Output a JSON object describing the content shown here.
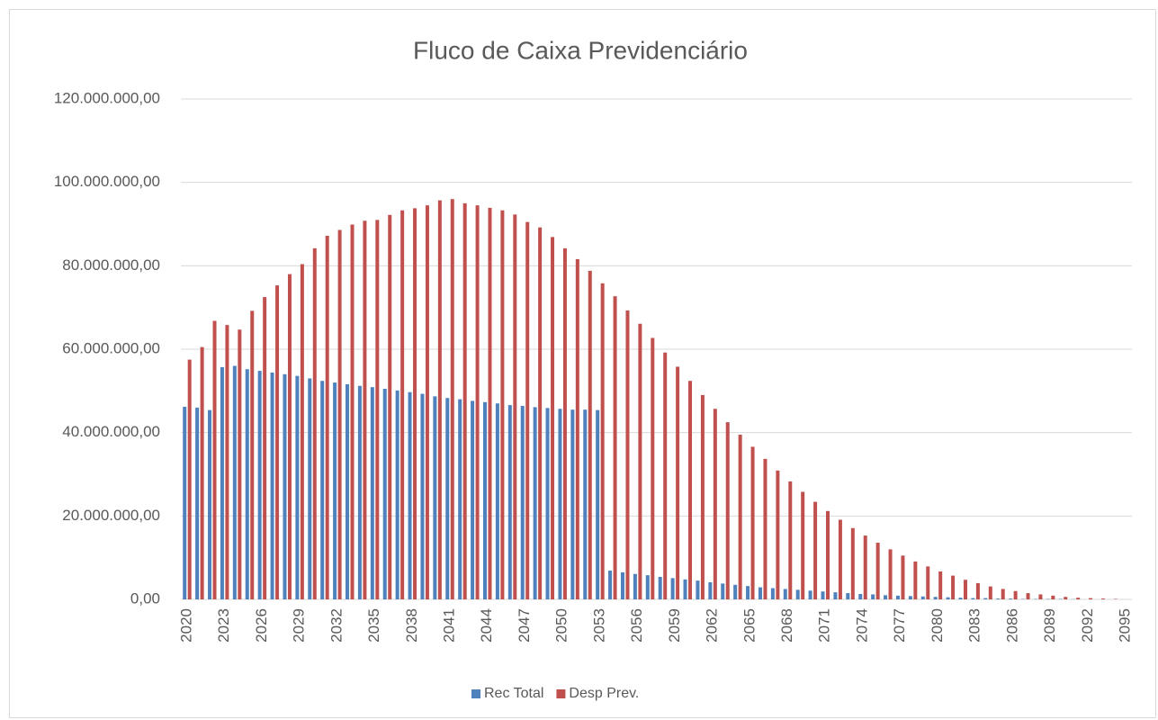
{
  "chart_data": {
    "type": "bar",
    "title": "Fluco de Caixa Previdenciário",
    "categories": [
      "2020",
      null,
      null,
      "2023",
      null,
      null,
      "2026",
      null,
      null,
      "2029",
      null,
      null,
      "2032",
      null,
      null,
      "2035",
      null,
      null,
      "2038",
      null,
      null,
      "2041",
      null,
      null,
      "2044",
      null,
      null,
      "2047",
      null,
      null,
      "2050",
      null,
      null,
      "2053",
      null,
      null,
      "2056",
      null,
      null,
      "2059",
      null,
      null,
      "2062",
      null,
      null,
      "2065",
      null,
      null,
      "2068",
      null,
      null,
      "2071",
      null,
      null,
      "2074",
      null,
      null,
      "2077",
      null,
      null,
      "2080",
      null,
      null,
      "2083",
      null,
      null,
      "2086",
      null,
      null,
      "2089",
      null,
      null,
      "2092",
      null,
      null,
      "2095"
    ],
    "series": [
      {
        "name": "Rec Total",
        "color": "#4f81bd",
        "values": [
          46200000,
          46000000,
          45400000,
          55700000,
          56000000,
          55200000,
          54800000,
          54400000,
          54000000,
          53600000,
          53000000,
          52400000,
          52000000,
          51600000,
          51200000,
          50900000,
          50500000,
          50100000,
          49700000,
          49300000,
          48700000,
          48300000,
          48000000,
          47600000,
          47300000,
          47000000,
          46600000,
          46400000,
          46100000,
          45900000,
          45700000,
          45500000,
          45500000,
          45400000,
          6900000,
          6500000,
          6100000,
          5800000,
          5400000,
          5100000,
          4800000,
          4500000,
          4100000,
          3800000,
          3500000,
          3200000,
          2900000,
          2700000,
          2500000,
          2300000,
          2100000,
          1900000,
          1700000,
          1500000,
          1300000,
          1200000,
          1000000,
          900000,
          800000,
          700000,
          600000,
          500000,
          400000,
          300000,
          300000,
          200000,
          200000,
          100000,
          100000,
          100000,
          100000,
          50000,
          0,
          0,
          0,
          0
        ]
      },
      {
        "name": "Desp Prev.",
        "color": "#c0504d",
        "values": [
          57500000,
          60500000,
          66800000,
          65800000,
          64700000,
          69200000,
          72500000,
          75300000,
          78000000,
          80400000,
          84200000,
          87200000,
          88600000,
          89900000,
          90800000,
          91000000,
          92200000,
          93300000,
          93800000,
          94500000,
          95700000,
          96000000,
          95000000,
          94500000,
          93900000,
          93300000,
          92300000,
          90500000,
          89200000,
          86900000,
          84200000,
          81600000,
          78800000,
          75800000,
          72700000,
          69300000,
          66100000,
          62700000,
          59200000,
          55800000,
          52400000,
          49000000,
          45700000,
          42500000,
          39500000,
          36600000,
          33700000,
          30900000,
          28300000,
          25800000,
          23400000,
          21200000,
          19100000,
          17100000,
          15300000,
          13600000,
          12000000,
          10500000,
          9100000,
          7900000,
          6700000,
          5700000,
          4700000,
          3900000,
          3100000,
          2500000,
          2000000,
          1500000,
          1200000,
          900000,
          600000,
          400000,
          300000,
          200000,
          100000,
          0
        ]
      }
    ],
    "ylim": [
      0,
      120000000
    ],
    "yticks": [
      {
        "value": 0,
        "label": "0,00"
      },
      {
        "value": 20000000,
        "label": "20.000.000,00"
      },
      {
        "value": 40000000,
        "label": "40.000.000,00"
      },
      {
        "value": 60000000,
        "label": "60.000.000,00"
      },
      {
        "value": 80000000,
        "label": "80.000.000,00"
      },
      {
        "value": 100000000,
        "label": "100.000.000,00"
      },
      {
        "value": 120000000,
        "label": "120.000.000,00"
      }
    ],
    "grid": true,
    "legend": "bottom"
  }
}
